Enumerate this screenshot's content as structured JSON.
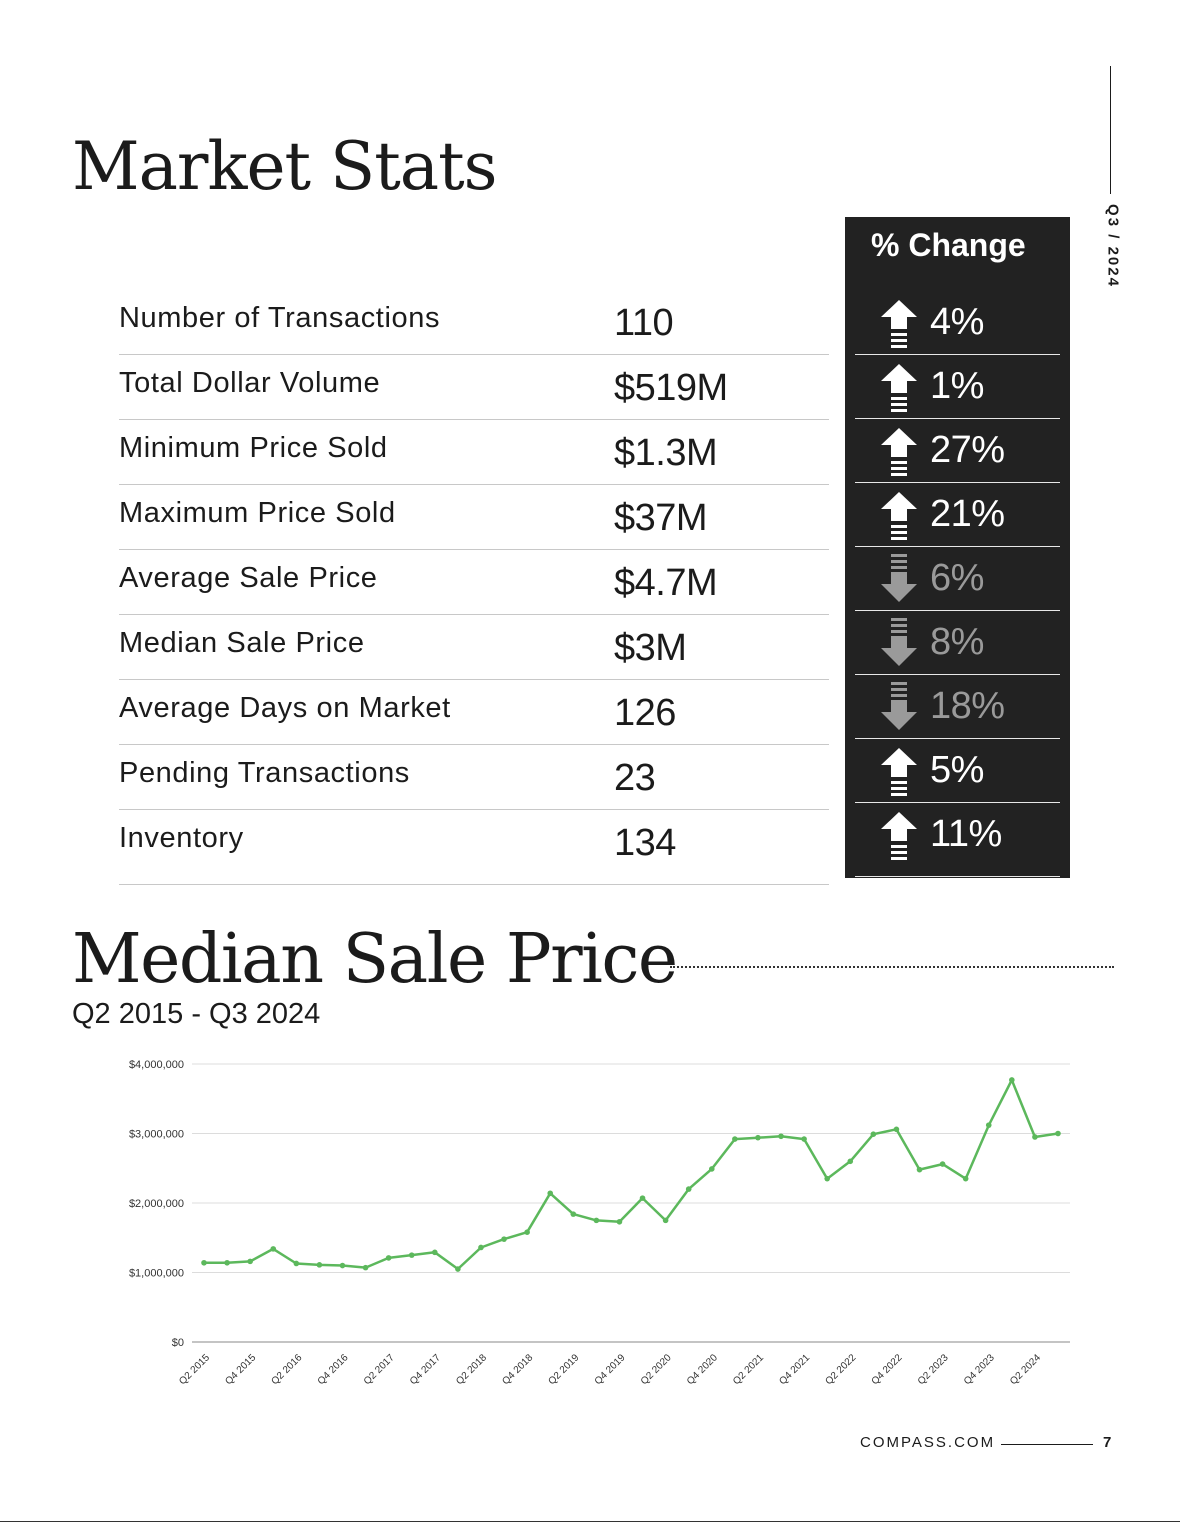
{
  "side_label": "Q3 / 2024",
  "market_stats": {
    "title": "Market Stats",
    "change_header": "% Change",
    "rows": [
      {
        "label": "Number of Transactions",
        "value": "110",
        "change": "4%",
        "direction": "up"
      },
      {
        "label": "Total Dollar Volume",
        "value": "$519M",
        "change": "1%",
        "direction": "up"
      },
      {
        "label": "Minimum Price Sold",
        "value": "$1.3M",
        "change": "27%",
        "direction": "up"
      },
      {
        "label": "Maximum Price Sold",
        "value": "$37M",
        "change": "21%",
        "direction": "up"
      },
      {
        "label": "Average Sale Price",
        "value": "$4.7M",
        "change": "6%",
        "direction": "down"
      },
      {
        "label": "Median Sale Price",
        "value": "$3M",
        "change": "8%",
        "direction": "down"
      },
      {
        "label": "Average Days on Market",
        "value": "126",
        "change": "18%",
        "direction": "down"
      },
      {
        "label": "Pending Transactions",
        "value": "23",
        "change": "5%",
        "direction": "up"
      },
      {
        "label": "Inventory",
        "value": "134",
        "change": "11%",
        "direction": "up"
      }
    ]
  },
  "median_section": {
    "title": "Median Sale Price",
    "subtitle": "Q2 2015 - Q3 2024"
  },
  "colors": {
    "line": "#5cb85c",
    "box": "#222222",
    "down_text": "#9a9a9a"
  },
  "chart_data": {
    "type": "line",
    "title": "Median Sale Price",
    "subtitle": "Q2 2015 - Q3 2024",
    "xlabel": "",
    "ylabel": "",
    "ylim": [
      0,
      4000000
    ],
    "y_ticks": [
      0,
      1000000,
      2000000,
      3000000,
      4000000
    ],
    "y_tick_labels": [
      "$0",
      "$1,000,000",
      "$2,000,000",
      "$3,000,000",
      "$4,000,000"
    ],
    "x": [
      "Q2 2015",
      "Q3 2015",
      "Q4 2015",
      "Q1 2016",
      "Q2 2016",
      "Q3 2016",
      "Q4 2016",
      "Q1 2017",
      "Q2 2017",
      "Q3 2017",
      "Q4 2017",
      "Q1 2018",
      "Q2 2018",
      "Q3 2018",
      "Q4 2018",
      "Q1 2019",
      "Q2 2019",
      "Q3 2019",
      "Q4 2019",
      "Q1 2020",
      "Q2 2020",
      "Q3 2020",
      "Q4 2020",
      "Q1 2021",
      "Q2 2021",
      "Q3 2021",
      "Q4 2021",
      "Q1 2022",
      "Q2 2022",
      "Q3 2022",
      "Q4 2022",
      "Q1 2023",
      "Q2 2023",
      "Q3 2023",
      "Q4 2023",
      "Q1 2024",
      "Q2 2024",
      "Q3 2024"
    ],
    "x_tick_labels": [
      "Q2 2015",
      "Q4 2015",
      "Q2 2016",
      "Q4 2016",
      "Q2 2017",
      "Q4 2017",
      "Q2 2018",
      "Q4 2018",
      "Q2 2019",
      "Q4 2019",
      "Q2 2020",
      "Q4 2020",
      "Q2 2021",
      "Q4 2021",
      "Q2 2022",
      "Q4 2022",
      "Q2 2023",
      "Q4 2023",
      "Q2 2024"
    ],
    "series": [
      {
        "name": "Median Sale Price",
        "values": [
          1140000,
          1140000,
          1160000,
          1340000,
          1130000,
          1110000,
          1100000,
          1070000,
          1210000,
          1250000,
          1290000,
          1050000,
          1360000,
          1480000,
          1580000,
          2140000,
          1840000,
          1750000,
          1730000,
          2070000,
          1750000,
          2200000,
          2490000,
          2920000,
          2940000,
          2960000,
          2920000,
          2350000,
          2600000,
          2990000,
          3060000,
          2480000,
          2560000,
          2350000,
          3120000,
          3770000,
          2950000,
          3000000
        ]
      }
    ]
  },
  "footer": {
    "site": "COMPASS.COM",
    "page": "7"
  }
}
